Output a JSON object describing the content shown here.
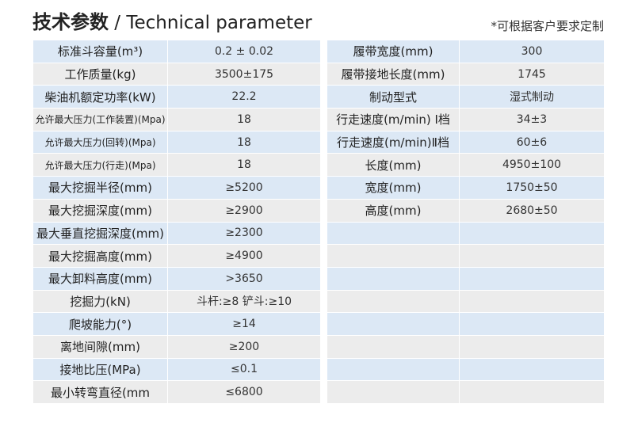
{
  "header": {
    "title_cn": "技术参数",
    "title_sep": " / ",
    "title_en": "Technical parameter",
    "note": "*可根据客户要求定制"
  },
  "left_table": [
    {
      "label": "标准斗容量(m³)",
      "value": "0.2 ± 0.02"
    },
    {
      "label": "工作质量(kg)",
      "value": "3500±175"
    },
    {
      "label": "柴油机额定功率(kW)",
      "value": "22.2"
    },
    {
      "label": "允许最大压力(工作装置)(Mpa)",
      "value": "18"
    },
    {
      "label": "允许最大压力(回转)(Mpa)",
      "value": "18"
    },
    {
      "label": "允许最大压力(行走)(Mpa)",
      "value": "18"
    },
    {
      "label": "最大挖掘半径(mm)",
      "value": "≥5200"
    },
    {
      "label": "最大挖掘深度(mm)",
      "value": "≥2900"
    },
    {
      "label": "最大垂直挖掘深度(mm)",
      "value": "≥2300"
    },
    {
      "label": "最大挖掘高度(mm)",
      "value": "≥4900"
    },
    {
      "label": "最大卸料高度(mm)",
      "value": ">3650"
    },
    {
      "label": "挖掘力(kN)",
      "value": "斗杆:≥8 铲斗:≥10"
    },
    {
      "label": "爬坡能力(°)",
      "value": "≥14"
    },
    {
      "label": "离地间隙(mm)",
      "value": "≥200"
    },
    {
      "label": "接地比压(MPa)",
      "value": "≤0.1"
    },
    {
      "label": "最小转弯直径(mm",
      "value": "≤6800"
    }
  ],
  "right_table": [
    {
      "label": "履带宽度(mm)",
      "value": "300"
    },
    {
      "label": "履带接地长度(mm)",
      "value": "1745"
    },
    {
      "label": "制动型式",
      "value": "湿式制动"
    },
    {
      "label": "行走速度(m/min) Ⅰ档",
      "value": "34±3"
    },
    {
      "label": "行走速度(m/min)Ⅱ档",
      "value": "60±6"
    },
    {
      "label": "长度(mm)",
      "value": "4950±100"
    },
    {
      "label": "宽度(mm)",
      "value": "1750±50"
    },
    {
      "label": "高度(mm)",
      "value": "2680±50"
    },
    {
      "label": "",
      "value": ""
    },
    {
      "label": "",
      "value": ""
    },
    {
      "label": "",
      "value": ""
    },
    {
      "label": "",
      "value": ""
    },
    {
      "label": "",
      "value": ""
    },
    {
      "label": "",
      "value": ""
    },
    {
      "label": "",
      "value": ""
    },
    {
      "label": "",
      "value": ""
    }
  ]
}
